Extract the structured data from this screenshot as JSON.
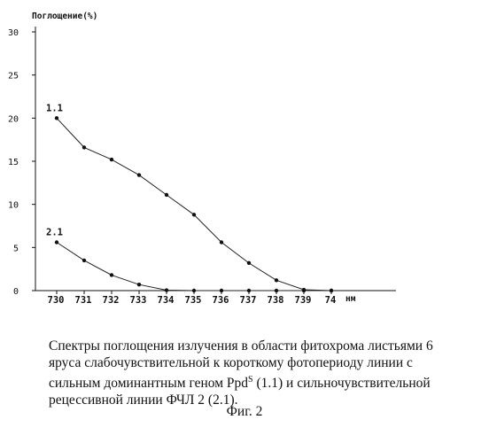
{
  "chart_data": {
    "type": "line",
    "ylabel": "Поглощение(%)",
    "xunit": "нм",
    "ylim": [
      0,
      30
    ],
    "yticks": [
      "0",
      "5",
      "10",
      "15",
      "20",
      "25",
      "30"
    ],
    "categories": [
      "730",
      "731",
      "732",
      "733",
      "734",
      "735",
      "736",
      "737",
      "738",
      "739",
      "74"
    ],
    "grid": false,
    "series": [
      {
        "name": "1.1",
        "values": [
          20.0,
          16.6,
          15.2,
          13.4,
          11.1,
          8.8,
          5.6,
          3.2,
          1.2,
          0.1,
          0.0
        ]
      },
      {
        "name": "2.1",
        "values": [
          5.6,
          3.5,
          1.8,
          0.7,
          0.05,
          0.0,
          0.0,
          0.0,
          0.0,
          0.0,
          0.0
        ]
      }
    ]
  },
  "caption": {
    "line1": "Спектры поглощения излучения в области фитохрома листьями 6",
    "line2": "яруса слабочувствительной к короткому фотопериоду линии с",
    "line3_pre": "сильным доминантным геном Ppd",
    "line3_sup": "S",
    "line3_post": " (1.1) и сильночувствительной",
    "line4": "рецессивной линии ФЧЛ 2 (2.1).",
    "figure": "Фиг. 2"
  }
}
